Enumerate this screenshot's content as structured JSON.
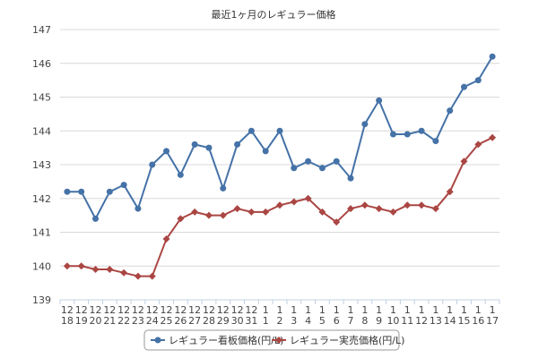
{
  "chart_data": {
    "type": "line",
    "title": "最近1ヶ月のレギュラー価格",
    "xlabel": "",
    "ylabel": "",
    "ylim": [
      139,
      147
    ],
    "yticks": [
      139,
      140,
      141,
      142,
      143,
      144,
      145,
      146,
      147
    ],
    "grid": true,
    "legend_position": "bottom",
    "categories": [
      "12/18",
      "12/19",
      "12/20",
      "12/21",
      "12/22",
      "12/23",
      "12/24",
      "12/25",
      "12/26",
      "12/27",
      "12/28",
      "12/29",
      "12/30",
      "12/31",
      "1/1",
      "1/2",
      "1/3",
      "1/4",
      "1/5",
      "1/6",
      "1/7",
      "1/8",
      "1/9",
      "1/10",
      "1/11",
      "1/12",
      "1/13",
      "1/14",
      "1/15",
      "1/16",
      "1/17"
    ],
    "tick_month": [
      "12",
      "12",
      "12",
      "12",
      "12",
      "12",
      "12",
      "12",
      "12",
      "12",
      "12",
      "12",
      "12",
      "12",
      "1",
      "1",
      "1",
      "1",
      "1",
      "1",
      "1",
      "1",
      "1",
      "1",
      "1",
      "1",
      "1",
      "1",
      "1",
      "1",
      "1"
    ],
    "tick_day": [
      "18",
      "19",
      "20",
      "21",
      "22",
      "23",
      "24",
      "25",
      "26",
      "27",
      "28",
      "29",
      "30",
      "31",
      "1",
      "2",
      "3",
      "4",
      "5",
      "6",
      "7",
      "8",
      "9",
      "10",
      "11",
      "12",
      "13",
      "14",
      "15",
      "16",
      "17"
    ],
    "series": [
      {
        "name": "レギュラー看板価格(円/L)",
        "color": "#4572a7",
        "marker": "circle",
        "values": [
          142.2,
          142.2,
          141.4,
          142.2,
          142.4,
          141.7,
          143.0,
          143.4,
          142.7,
          143.6,
          143.5,
          142.3,
          143.6,
          144.0,
          143.4,
          144.0,
          142.9,
          143.1,
          142.9,
          143.1,
          142.6,
          144.2,
          144.9,
          143.9,
          143.9,
          144.0,
          143.7,
          144.6,
          145.3,
          145.5,
          146.2
        ]
      },
      {
        "name": "レギュラー実売価格(円/L)",
        "color": "#aa4643",
        "marker": "diamond",
        "values": [
          140.0,
          140.0,
          139.9,
          139.9,
          139.8,
          139.7,
          139.7,
          140.8,
          141.4,
          141.6,
          141.5,
          141.5,
          141.7,
          141.6,
          141.6,
          141.8,
          141.9,
          142.0,
          141.6,
          141.3,
          141.7,
          141.8,
          141.7,
          141.6,
          141.8,
          141.8,
          141.7,
          142.2,
          143.1,
          143.6,
          143.8
        ]
      }
    ]
  }
}
